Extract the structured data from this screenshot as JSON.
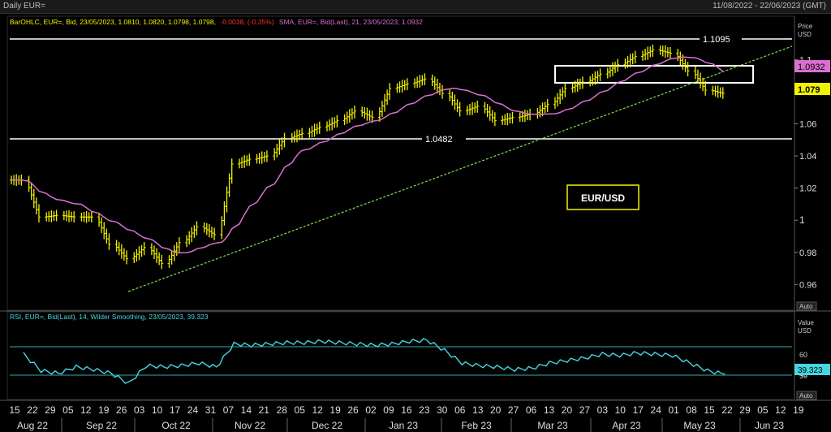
{
  "window": {
    "title": "Daily EUR=",
    "date_range": "11/08/2022 - 22/06/2023 (GMT)"
  },
  "price_panel": {
    "legend_ohlc_prefix": "BarOHLC, EUR=, Bid, 23/05/2023, 1.0810, 1.0820, 1.0798, 1.0798,",
    "legend_change": "-0.0038, (-0.35%)",
    "legend_sma": "SMA, EUR=, Bid(Last), 21, 23/05/2023, 1.0932",
    "axis_title": [
      "Price",
      "USD"
    ],
    "auto_label": "Auto",
    "pair_label": "EUR/USD",
    "level_high_label": "1.1095",
    "level_low_label": "1.0482",
    "sma_tag": "1.0932",
    "close_tag": "1.079",
    "tick_labels": [
      "1.1",
      "1.08",
      "1.06",
      "1.04",
      "1.02",
      "1",
      "0.98",
      "0.96"
    ]
  },
  "rsi_panel": {
    "legend": "RSI, EUR=, Bid(Last), 14, Wilder Smoothing, 23/05/2023, 39.323",
    "axis_title": [
      "Value",
      "USD"
    ],
    "auto_label": "Auto",
    "value_tag": "39.323",
    "tick_labels": [
      "60",
      "40",
      "30"
    ]
  },
  "x_axis": {
    "days": [
      "15",
      "22",
      "29",
      "05",
      "12",
      "19",
      "26",
      "03",
      "10",
      "17",
      "24",
      "31",
      "07",
      "14",
      "21",
      "28",
      "05",
      "12",
      "19",
      "26",
      "02",
      "09",
      "16",
      "23",
      "30",
      "06",
      "13",
      "20",
      "27",
      "06",
      "13",
      "20",
      "27",
      "03",
      "10",
      "17",
      "24",
      "01",
      "08",
      "15",
      "22",
      "29",
      "05",
      "12",
      "19"
    ],
    "months": [
      "Aug 22",
      "Sep 22",
      "Oct 22",
      "Nov 22",
      "Dec 22",
      "Jan 23",
      "Feb 23",
      "Mar 23",
      "Apr 23",
      "May 23",
      "Jun 23"
    ]
  },
  "colors": {
    "bars": "#f2f200",
    "sma": "#d96fd0",
    "trendline": "#7fe04a",
    "rsi_line": "#45d6e0",
    "levels": "#ffffff",
    "change_negative": "#ff3030"
  },
  "chart_data": [
    {
      "type": "ohlc",
      "x_unit": "week_start",
      "x": [
        "2022-08-15",
        "2022-08-22",
        "2022-08-29",
        "2022-09-05",
        "2022-09-12",
        "2022-09-19",
        "2022-09-26",
        "2022-10-03",
        "2022-10-10",
        "2022-10-17",
        "2022-10-24",
        "2022-10-31",
        "2022-11-07",
        "2022-11-14",
        "2022-11-21",
        "2022-11-28",
        "2022-12-05",
        "2022-12-12",
        "2022-12-19",
        "2022-12-26",
        "2023-01-02",
        "2023-01-09",
        "2023-01-16",
        "2023-01-23",
        "2023-01-30",
        "2023-02-06",
        "2023-02-13",
        "2023-02-20",
        "2023-02-27",
        "2023-03-06",
        "2023-03-13",
        "2023-03-20",
        "2023-03-27",
        "2023-04-03",
        "2023-04-10",
        "2023-04-17",
        "2023-04-24",
        "2023-05-01",
        "2023-05-08",
        "2023-05-15",
        "2023-05-22"
      ],
      "close": [
        1.025,
        1.002,
        1.003,
        1.002,
        1.002,
        0.985,
        0.976,
        0.983,
        0.973,
        0.986,
        0.996,
        0.991,
        1.035,
        1.038,
        1.04,
        1.051,
        1.054,
        1.058,
        1.062,
        1.068,
        1.064,
        1.082,
        1.085,
        1.088,
        1.079,
        1.068,
        1.071,
        1.062,
        1.064,
        1.066,
        1.072,
        1.082,
        1.086,
        1.091,
        1.097,
        1.102,
        1.106,
        1.104,
        1.093,
        1.081,
        1.079
      ],
      "sma_21_last": 1.0932,
      "levels": [
        1.1095,
        1.0482
      ],
      "ylim": [
        0.945,
        1.127
      ]
    },
    {
      "type": "line",
      "name": "RSI 14 Wilder Smoothing",
      "x": [
        "2022-08-15",
        "2022-08-22",
        "2022-08-29",
        "2022-09-05",
        "2022-09-12",
        "2022-09-19",
        "2022-09-26",
        "2022-10-03",
        "2022-10-10",
        "2022-10-17",
        "2022-10-24",
        "2022-10-31",
        "2022-11-07",
        "2022-11-14",
        "2022-11-21",
        "2022-11-28",
        "2022-12-05",
        "2022-12-12",
        "2022-12-19",
        "2022-12-26",
        "2023-01-02",
        "2023-01-09",
        "2023-01-16",
        "2023-01-23",
        "2023-01-30",
        "2023-02-06",
        "2023-02-13",
        "2023-02-20",
        "2023-02-27",
        "2023-03-06",
        "2023-03-13",
        "2023-03-20",
        "2023-03-27",
        "2023-04-03",
        "2023-04-10",
        "2023-04-17",
        "2023-04-24",
        "2023-05-01",
        "2023-05-08",
        "2023-05-15",
        "2023-05-22"
      ],
      "values": [
        55,
        42,
        40,
        45,
        43,
        40,
        32,
        46,
        45,
        46,
        48,
        45,
        63,
        62,
        63,
        64,
        64,
        65,
        64,
        63,
        62,
        63,
        65,
        66,
        58,
        48,
        46,
        45,
        43,
        44,
        48,
        50,
        52,
        55,
        54,
        56,
        55,
        54,
        48,
        42,
        39.323
      ],
      "reference_lines": [
        30,
        70
      ],
      "ylim": [
        22,
        78
      ]
    }
  ]
}
